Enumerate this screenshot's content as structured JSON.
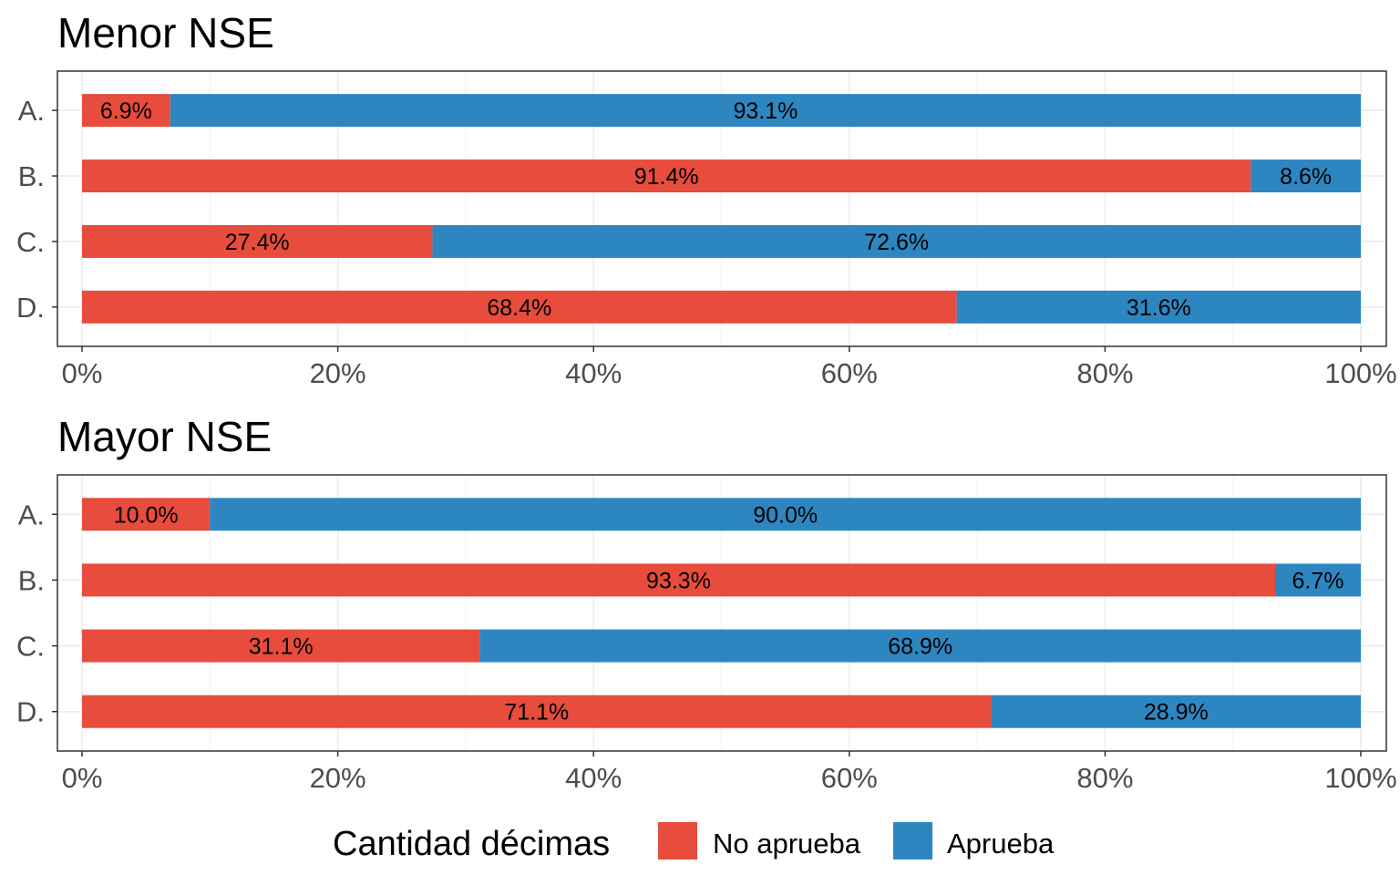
{
  "chart_data": [
    {
      "type": "bar",
      "orientation": "horizontal",
      "stacked": true,
      "title": "Menor NSE",
      "categories": [
        "A.",
        "B.",
        "C.",
        "D."
      ],
      "series": [
        {
          "name": "No aprueba",
          "values": [
            6.9,
            91.4,
            27.4,
            68.4
          ],
          "labels": [
            "6.9%",
            "91.4%",
            "27.4%",
            "68.4%"
          ]
        },
        {
          "name": "Aprueba",
          "values": [
            93.1,
            8.6,
            72.6,
            31.6
          ],
          "labels": [
            "93.1%",
            "8.6%",
            "72.6%",
            "31.6%"
          ]
        }
      ],
      "xlim": [
        0,
        100
      ],
      "xticks": [
        "0%",
        "20%",
        "40%",
        "60%",
        "80%",
        "100%"
      ],
      "grid": true
    },
    {
      "type": "bar",
      "orientation": "horizontal",
      "stacked": true,
      "title": "Mayor NSE",
      "categories": [
        "A.",
        "B.",
        "C.",
        "D."
      ],
      "series": [
        {
          "name": "No aprueba",
          "values": [
            10.0,
            93.3,
            31.1,
            71.1
          ],
          "labels": [
            "10.0%",
            "93.3%",
            "31.1%",
            "71.1%"
          ]
        },
        {
          "name": "Aprueba",
          "values": [
            90.0,
            6.7,
            68.9,
            28.9
          ],
          "labels": [
            "90.0%",
            "6.7%",
            "68.9%",
            "28.9%"
          ]
        }
      ],
      "xlim": [
        0,
        100
      ],
      "xticks": [
        "0%",
        "20%",
        "40%",
        "60%",
        "80%",
        "100%"
      ],
      "grid": true
    }
  ],
  "legend": {
    "title": "Cantidad décimas",
    "position": "bottom",
    "items": [
      {
        "label": "No aprueba",
        "color": "#E74C3C"
      },
      {
        "label": "Aprueba",
        "color": "#2E86C1"
      }
    ]
  }
}
